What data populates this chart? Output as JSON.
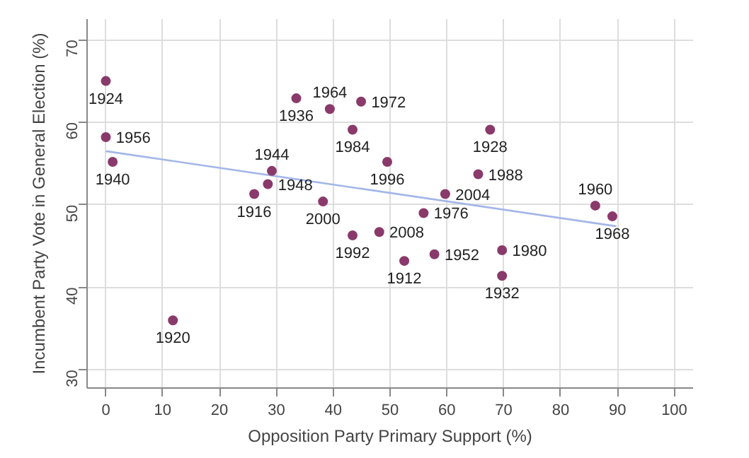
{
  "chart_data": {
    "type": "scatter",
    "xlabel": "Opposition Party Primary Support (%)",
    "ylabel": "Incumbent Party Vote in General Election (%)",
    "xlim": [
      -3.3,
      103.3
    ],
    "ylim": [
      27.8,
      72.5
    ],
    "xticks": [
      0,
      10,
      20,
      30,
      40,
      50,
      60,
      70,
      80,
      90,
      100
    ],
    "yticks": [
      30,
      40,
      50,
      60,
      70
    ],
    "grid": true,
    "marker": "circle",
    "series": [
      {
        "type": "line",
        "marker": "none",
        "color": "#a3b6e8",
        "x": [
          0,
          89.8
        ],
        "values": [
          56.5,
          47.4
        ]
      },
      {
        "color": "#8a3a6a",
        "x": [
          0,
          0,
          1.2,
          11.8,
          26.1,
          28.5,
          29.2,
          38.2,
          33.5,
          39.4,
          44.9,
          43.4,
          49.5,
          43.4,
          48.1,
          52.5,
          57.8,
          55.9,
          59.7,
          65.5,
          67.6,
          69.7,
          69.7,
          86.1,
          89.1
        ],
        "values": [
          65.0,
          58.2,
          55.2,
          36.0,
          51.3,
          52.5,
          54.1,
          50.4,
          62.9,
          61.6,
          62.5,
          59.1,
          55.2,
          46.3,
          46.7,
          43.2,
          44.0,
          49.0,
          51.3,
          53.7,
          59.1,
          44.5,
          41.4,
          49.9,
          48.6
        ]
      }
    ],
    "annotations": [
      {
        "text": "1924",
        "x": 0,
        "y": 65.0
      },
      {
        "text": "1956",
        "x": 0,
        "y": 58.2
      },
      {
        "text": "1940",
        "x": 1.2,
        "y": 55.2
      },
      {
        "text": "1920",
        "x": 11.8,
        "y": 36.0
      },
      {
        "text": "1916",
        "x": 26.1,
        "y": 51.3
      },
      {
        "text": "1948",
        "x": 28.5,
        "y": 52.5
      },
      {
        "text": "1944",
        "x": 29.2,
        "y": 54.1
      },
      {
        "text": "2000",
        "x": 38.2,
        "y": 50.4
      },
      {
        "text": "1936",
        "x": 33.5,
        "y": 62.9
      },
      {
        "text": "1964",
        "x": 39.4,
        "y": 61.6
      },
      {
        "text": "1972",
        "x": 44.9,
        "y": 62.5
      },
      {
        "text": "1984",
        "x": 43.4,
        "y": 59.1
      },
      {
        "text": "1996",
        "x": 49.5,
        "y": 55.2
      },
      {
        "text": "1992",
        "x": 43.4,
        "y": 46.3
      },
      {
        "text": "2008",
        "x": 48.1,
        "y": 46.7
      },
      {
        "text": "1912",
        "x": 52.5,
        "y": 43.2
      },
      {
        "text": "1952",
        "x": 57.8,
        "y": 44.0
      },
      {
        "text": "1976",
        "x": 55.9,
        "y": 49.0
      },
      {
        "text": "2004",
        "x": 59.7,
        "y": 51.3
      },
      {
        "text": "1988",
        "x": 65.5,
        "y": 53.7
      },
      {
        "text": "1928",
        "x": 67.6,
        "y": 59.1
      },
      {
        "text": "1980",
        "x": 69.7,
        "y": 44.5
      },
      {
        "text": "1932",
        "x": 69.7,
        "y": 41.4
      },
      {
        "text": "1960",
        "x": 86.1,
        "y": 49.9
      },
      {
        "text": "1968",
        "x": 89.1,
        "y": 48.6
      }
    ]
  }
}
